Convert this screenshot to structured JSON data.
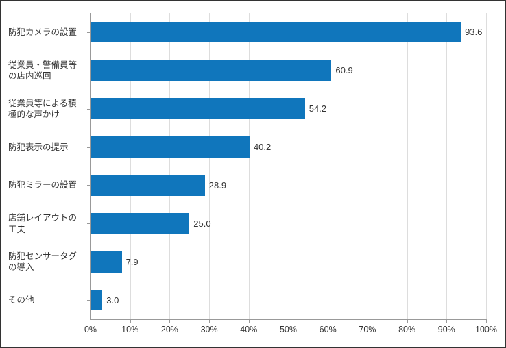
{
  "chart": {
    "type": "bar",
    "orientation": "horizontal",
    "background_color": "#ffffff",
    "border_color": "#333333",
    "axis_color": "#999999",
    "grid_color": "#dddddd",
    "bar_color": "#1076bc",
    "text_color": "#333333",
    "label_fontsize": 12.5,
    "value_fontsize": 13,
    "xlim": [
      0,
      100
    ],
    "xtick_step": 10,
    "xticks": [
      0,
      10,
      20,
      30,
      40,
      50,
      60,
      70,
      80,
      90,
      100
    ],
    "xtick_labels": [
      "0%",
      "10%",
      "20%",
      "30%",
      "40%",
      "50%",
      "60%",
      "70%",
      "80%",
      "90%",
      "100%"
    ],
    "bar_width_ratio": 0.55,
    "categories": [
      {
        "label": "防犯カメラの設置",
        "value": 93.6,
        "display": "93.6"
      },
      {
        "label": "従業員・警備員等の店内巡回",
        "value": 60.9,
        "display": "60.9"
      },
      {
        "label": "従業員等による積極的な声かけ",
        "value": 54.2,
        "display": "54.2"
      },
      {
        "label": "防犯表示の提示",
        "value": 40.2,
        "display": "40.2"
      },
      {
        "label": "防犯ミラーの設置",
        "value": 28.9,
        "display": "28.9"
      },
      {
        "label": "店舗レイアウトの工夫",
        "value": 25.0,
        "display": "25.0"
      },
      {
        "label": "防犯センサータグの導入",
        "value": 7.9,
        "display": "7.9"
      },
      {
        "label": "その他",
        "value": 3.0,
        "display": "3.0"
      }
    ]
  }
}
